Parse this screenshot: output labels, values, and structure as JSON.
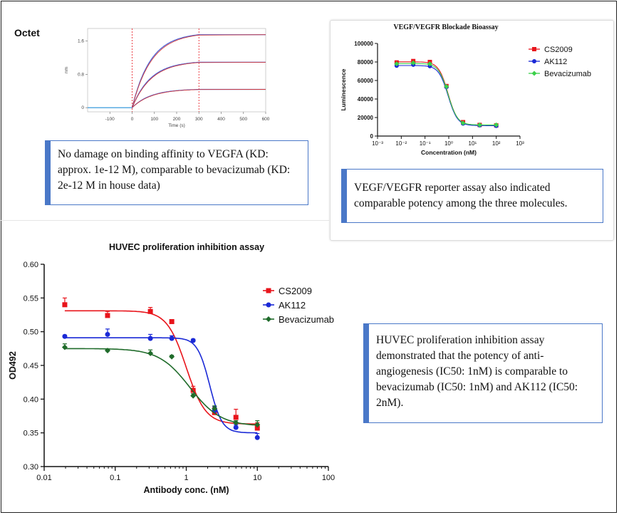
{
  "octet": {
    "label": "Octet",
    "xlabel": "Time (s)",
    "ylabel": "nm",
    "x_ticks": [
      "-100",
      "0",
      "100",
      "200",
      "300",
      "400",
      "500",
      "600"
    ],
    "y_ticks": [
      "1.6",
      "0.8",
      "0"
    ],
    "note": "No damage on binding affinity to VEGFA (KD: approx. 1e-12 M), comparable to bevacizumab (KD: 2e-12 M in house data)"
  },
  "vegf_note": "VEGF/VEGFR reporter assay also indicated comparable potency among the three molecules.",
  "huvec_note": "HUVEC proliferation inhibition assay demonstrated that the potency of anti-angiogenesis (IC50: 1nM) is comparable to bevacizumab (IC50: 1nM) and AK112 (IC50: 2nM).",
  "colors": {
    "cs2009": "#e8141b",
    "ak112": "#1a29d6",
    "bevacizumab": "#1f6b2a",
    "bevacizumab_vegf": "#3bd14a",
    "note_border": "#4a78c8"
  },
  "chart_data": [
    {
      "type": "line",
      "title": "Octet",
      "xlabel": "Time (s)",
      "ylabel": "nm",
      "xlim": [
        -200,
        600
      ],
      "ylim": [
        -0.1,
        1.9
      ],
      "association_start": 0,
      "dissociation_start": 300,
      "series": [
        {
          "plateau": 1.8
        },
        {
          "plateau": 1.12
        },
        {
          "plateau": 0.45
        }
      ]
    },
    {
      "type": "scatter",
      "title": "VEGF/VEGFR Blockade Bioassay",
      "xlabel": "Concentration (nM)",
      "ylabel": "Luminescence",
      "x_scale": "log",
      "xlim": [
        0.001,
        1000
      ],
      "ylim": [
        0,
        100000
      ],
      "x_tick_labels": [
        "10⁻³",
        "10⁻²",
        "10⁻¹",
        "10⁰",
        "10¹",
        "10²",
        "10³"
      ],
      "y_tick_labels": [
        "0",
        "20000",
        "40000",
        "60000",
        "80000",
        "100000"
      ],
      "legend": "top-right",
      "x": [
        0.0064,
        0.032,
        0.16,
        0.8,
        4,
        20,
        100
      ],
      "series": [
        {
          "name": "CS2009",
          "values": [
            79500,
            81000,
            80000,
            54000,
            15000,
            12000,
            11500
          ]
        },
        {
          "name": "AK112",
          "values": [
            76000,
            77000,
            75500,
            53000,
            13500,
            11500,
            11000
          ]
        },
        {
          "name": "Bevacizumab",
          "values": [
            78000,
            79000,
            78000,
            53500,
            14000,
            12000,
            12000
          ]
        }
      ]
    },
    {
      "type": "scatter",
      "title": "HUVEC proliferation inhibition assay",
      "xlabel": "Antibody conc. (nM)",
      "ylabel": "OD492",
      "x_scale": "log",
      "xlim": [
        0.01,
        100
      ],
      "ylim": [
        0.3,
        0.6
      ],
      "x_tick_labels": [
        "0.01",
        "0.1",
        "1",
        "10",
        "100"
      ],
      "y_tick_labels": [
        "0.30",
        "0.35",
        "0.40",
        "0.45",
        "0.50",
        "0.55",
        "0.60"
      ],
      "legend": "top-right",
      "x": [
        0.0195,
        0.078,
        0.3125,
        0.625,
        1.25,
        2.5,
        5,
        10
      ],
      "series": [
        {
          "name": "CS2009",
          "values": [
            0.54,
            0.524,
            0.53,
            0.515,
            0.413,
            0.38,
            0.373,
            0.357
          ],
          "errors": [
            0.01,
            0.006,
            0.006,
            0.003,
            0.006,
            0.008,
            0.012,
            0.008
          ]
        },
        {
          "name": "AK112",
          "values": [
            0.493,
            0.496,
            0.49,
            0.49,
            0.487,
            0.383,
            0.358,
            0.343
          ],
          "errors": [
            0.002,
            0.008,
            0.006,
            0.004,
            0.002,
            0.006,
            0.004,
            0.006
          ]
        },
        {
          "name": "Bevacizumab",
          "values": [
            0.477,
            0.472,
            0.468,
            0.463,
            0.405,
            0.386,
            0.365,
            0.362
          ],
          "errors": [
            0.005,
            0.002,
            0.005,
            0.002,
            0.003,
            0.004,
            0.003,
            0.006
          ]
        }
      ]
    }
  ]
}
